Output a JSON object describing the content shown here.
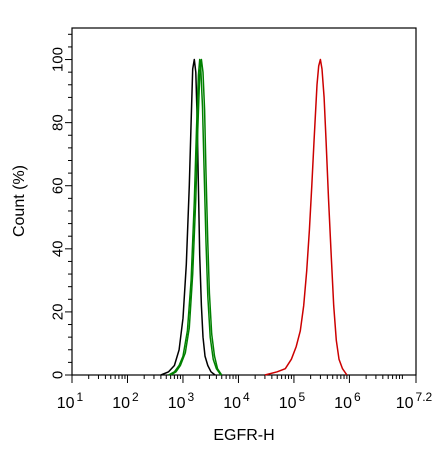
{
  "chart_data": {
    "type": "line",
    "title": "",
    "xlabel": "EGFR-H",
    "ylabel": "Count  (%)",
    "x_scale": "log10",
    "xlim": [
      10,
      15848931.92
    ],
    "ylim": [
      0,
      110
    ],
    "grid": false,
    "legend": "none",
    "x_ticks": [
      {
        "value": 10,
        "base": "10",
        "exp": "1"
      },
      {
        "value": 100,
        "base": "10",
        "exp": "2"
      },
      {
        "value": 1000,
        "base": "10",
        "exp": "3"
      },
      {
        "value": 10000,
        "base": "10",
        "exp": "4"
      },
      {
        "value": 100000,
        "base": "10",
        "exp": "5"
      },
      {
        "value": 1000000,
        "base": "10",
        "exp": "6"
      },
      {
        "value": 15848931.92,
        "base": "10",
        "exp": "7.2"
      }
    ],
    "y_ticks": [
      {
        "value": 0,
        "label": "0"
      },
      {
        "value": 20,
        "label": "20"
      },
      {
        "value": 40,
        "label": "40"
      },
      {
        "value": 60,
        "label": "60"
      },
      {
        "value": 80,
        "label": "80"
      },
      {
        "value": 100,
        "label": "100"
      }
    ],
    "series": [
      {
        "color": "#000000",
        "x": [
          400,
          550,
          700,
          850,
          1000,
          1150,
          1300,
          1400,
          1500,
          1600,
          1700,
          1800,
          1900,
          2000,
          2150,
          2300,
          2500,
          2800,
          3200,
          3800
        ],
        "y": [
          0,
          1,
          3,
          8,
          18,
          35,
          60,
          80,
          97,
          100,
          96,
          82,
          60,
          38,
          22,
          12,
          6,
          3,
          1,
          0
        ]
      },
      {
        "color": "#008000",
        "x": [
          550,
          700,
          850,
          1000,
          1200,
          1400,
          1600,
          1750,
          1900,
          2000,
          2100,
          2250,
          2400,
          2600,
          2800,
          3100,
          3500,
          4000,
          4800
        ],
        "y": [
          0,
          1,
          3,
          6,
          14,
          30,
          55,
          78,
          95,
          100,
          97,
          85,
          65,
          42,
          25,
          12,
          5,
          2,
          0
        ]
      },
      {
        "color": "#008000",
        "x": [
          600,
          750,
          900,
          1100,
          1300,
          1500,
          1700,
          1850,
          2000,
          2150,
          2300,
          2450,
          2600,
          2800,
          3000,
          3300,
          3700,
          4200,
          5000
        ],
        "y": [
          0,
          1,
          3,
          7,
          15,
          32,
          56,
          78,
          95,
          100,
          96,
          84,
          64,
          42,
          26,
          13,
          6,
          2,
          0
        ]
      },
      {
        "color": "#cc0000",
        "x": [
          30000,
          50000,
          70000,
          90000,
          110000,
          130000,
          150000,
          170000,
          190000,
          210000,
          230000,
          250000,
          260000,
          280000,
          300000,
          320000,
          350000,
          380000,
          420000,
          470000,
          520000,
          580000,
          650000,
          750000,
          900000
        ],
        "y": [
          0,
          1,
          2,
          5,
          9,
          14,
          22,
          33,
          46,
          60,
          74,
          86,
          92,
          98,
          100,
          97,
          88,
          74,
          56,
          38,
          22,
          11,
          5,
          2,
          0
        ]
      }
    ]
  }
}
